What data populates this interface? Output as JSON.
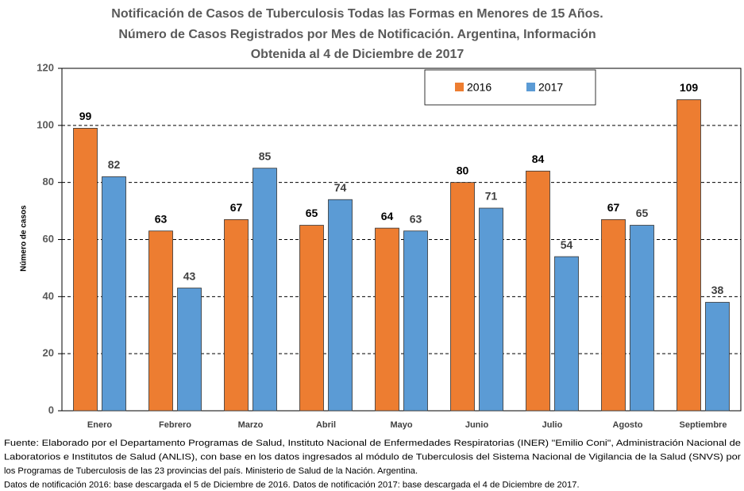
{
  "chart_data": {
    "type": "bar",
    "title": [
      "Notificación de Casos de Tuberculosis Todas las Formas en Menores de 15 Años.",
      "Número de Casos Registrados por Mes de Notificación. Argentina, Información",
      "Obtenida al 4 de Diciembre de 2017"
    ],
    "y_label": "Número de casos",
    "categories": [
      "Enero",
      "Febrero",
      "Marzo",
      "Abril",
      "Mayo",
      "Junio",
      "Julio",
      "Agosto",
      "Septiembre"
    ],
    "series": [
      {
        "name": "2016",
        "color": "#ed7d31",
        "values": [
          99,
          63,
          67,
          65,
          64,
          80,
          84,
          67,
          109
        ]
      },
      {
        "name": "2017",
        "color": "#5b9bd5",
        "values": [
          82,
          43,
          85,
          74,
          63,
          71,
          54,
          65,
          38
        ]
      }
    ],
    "ylim": [
      0,
      120
    ],
    "yticks": [
      0,
      20,
      40,
      60,
      80,
      100,
      120
    ],
    "grid": true,
    "legend": "top",
    "notes": [
      "Fuente: Elaborado por el Departamento Programas de Salud, Instituto Nacional de Enfermedades Respiratorias (INER) \"Emilio Coni\", Administración Nacional de",
      "Laboratorios e Institutos de Salud (ANLIS), con base en los datos ingresados al módulo de Tuberculosis del Sistema Nacional de Vigilancia de la Salud (SNVS) por",
      "los Programas de Tuberculosis de las 23 provincias del país. Ministerio de Salud de la Nación. Argentina.",
      "Datos de notificación 2016: base descargada el 5 de Diciembre de 2016.  Datos de notificación 2017: base descargada el 4 de Diciembre de 2017."
    ]
  }
}
